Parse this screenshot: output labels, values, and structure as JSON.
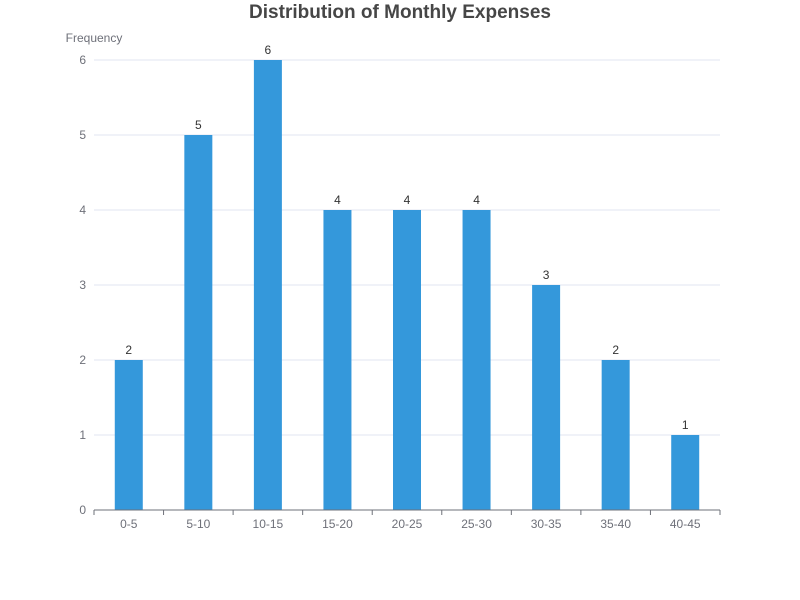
{
  "chart_data": {
    "type": "bar",
    "title": "Distribution of Monthly Expenses",
    "xlabel": "",
    "ylabel": "Frequency",
    "categories": [
      "0-5",
      "5-10",
      "10-15",
      "15-20",
      "20-25",
      "25-30",
      "30-35",
      "35-40",
      "40-45"
    ],
    "values": [
      2,
      5,
      6,
      4,
      4,
      4,
      3,
      2,
      1
    ],
    "ylim": [
      0,
      6
    ],
    "yticks": [
      0,
      1,
      2,
      3,
      4,
      5,
      6
    ],
    "grid": true,
    "data_labels": true,
    "bar_color": "#3498db",
    "legend": "none"
  }
}
